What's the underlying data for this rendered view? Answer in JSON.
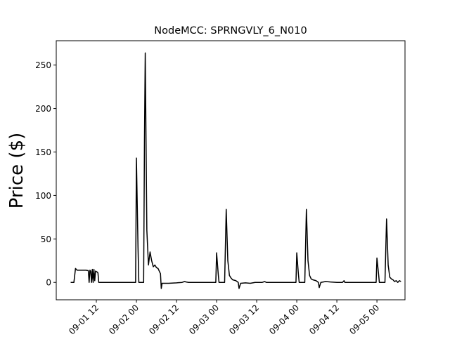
{
  "chart_data": {
    "type": "line",
    "title": "NodeMCC: SPRNGVLY_6_N010",
    "xlabel": "",
    "ylabel": "Price ($)",
    "ylim": [
      -20,
      278
    ],
    "xlim": [
      0.0,
      4.35
    ],
    "x_unit": "days since 2020-09-01 00:00",
    "y_ticks": [
      0,
      50,
      100,
      150,
      200,
      250
    ],
    "y_tick_labels": [
      "0",
      "50",
      "100",
      "150",
      "200",
      "250"
    ],
    "x_ticks": [
      0.5,
      1.0,
      1.5,
      2.0,
      2.5,
      3.0,
      3.5,
      4.0
    ],
    "x_tick_labels": [
      "09-01 12",
      "09-02 00",
      "09-02 12",
      "09-03 00",
      "09-03 12",
      "09-04 00",
      "09-04 12",
      "09-05 00"
    ],
    "grid": false,
    "line_color": "#000000",
    "series": [
      {
        "name": "",
        "points": [
          [
            0.18,
            0
          ],
          [
            0.22,
            0
          ],
          [
            0.24,
            16
          ],
          [
            0.26,
            14
          ],
          [
            0.3,
            14
          ],
          [
            0.34,
            14
          ],
          [
            0.37,
            14
          ],
          [
            0.4,
            13.5
          ],
          [
            0.41,
            0
          ],
          [
            0.42,
            14
          ],
          [
            0.43,
            13
          ],
          [
            0.44,
            0
          ],
          [
            0.45,
            15
          ],
          [
            0.46,
            0
          ],
          [
            0.47,
            15
          ],
          [
            0.48,
            2
          ],
          [
            0.49,
            13
          ],
          [
            0.51,
            12
          ],
          [
            0.52,
            11
          ],
          [
            0.53,
            0
          ],
          [
            0.6,
            0
          ],
          [
            0.8,
            0
          ],
          [
            0.99,
            0
          ],
          [
            1.0,
            143
          ],
          [
            1.02,
            40
          ],
          [
            1.03,
            0
          ],
          [
            1.09,
            0
          ],
          [
            1.1,
            160
          ],
          [
            1.11,
            264
          ],
          [
            1.13,
            60
          ],
          [
            1.15,
            20
          ],
          [
            1.17,
            35
          ],
          [
            1.19,
            25
          ],
          [
            1.21,
            18
          ],
          [
            1.23,
            20
          ],
          [
            1.25,
            17
          ],
          [
            1.27,
            16
          ],
          [
            1.29,
            12
          ],
          [
            1.3,
            10
          ],
          [
            1.31,
            -7
          ],
          [
            1.32,
            -1
          ],
          [
            1.4,
            -1
          ],
          [
            1.5,
            -0.5
          ],
          [
            1.57,
            0
          ],
          [
            1.6,
            1
          ],
          [
            1.62,
            0.5
          ],
          [
            1.65,
            0
          ],
          [
            1.8,
            0
          ],
          [
            1.99,
            0
          ],
          [
            2.0,
            34
          ],
          [
            2.02,
            10
          ],
          [
            2.03,
            0
          ],
          [
            2.1,
            0
          ],
          [
            2.12,
            84
          ],
          [
            2.14,
            25
          ],
          [
            2.16,
            8
          ],
          [
            2.18,
            5
          ],
          [
            2.2,
            3
          ],
          [
            2.24,
            2
          ],
          [
            2.27,
            0
          ],
          [
            2.28,
            -7
          ],
          [
            2.3,
            -1
          ],
          [
            2.36,
            -0.5
          ],
          [
            2.42,
            -1
          ],
          [
            2.48,
            0
          ],
          [
            2.57,
            0
          ],
          [
            2.6,
            1
          ],
          [
            2.62,
            0
          ],
          [
            2.8,
            0
          ],
          [
            2.99,
            0
          ],
          [
            3.0,
            34
          ],
          [
            3.02,
            10
          ],
          [
            3.03,
            0
          ],
          [
            3.1,
            0
          ],
          [
            3.12,
            84
          ],
          [
            3.14,
            25
          ],
          [
            3.16,
            8
          ],
          [
            3.18,
            4
          ],
          [
            3.2,
            3
          ],
          [
            3.24,
            2
          ],
          [
            3.27,
            0
          ],
          [
            3.28,
            -6
          ],
          [
            3.3,
            0
          ],
          [
            3.36,
            1
          ],
          [
            3.42,
            0.5
          ],
          [
            3.5,
            0
          ],
          [
            3.57,
            0
          ],
          [
            3.59,
            2
          ],
          [
            3.6,
            0
          ],
          [
            3.8,
            0
          ],
          [
            3.99,
            0
          ],
          [
            4.0,
            28
          ],
          [
            4.02,
            10
          ],
          [
            4.03,
            0
          ],
          [
            4.1,
            0
          ],
          [
            4.12,
            73
          ],
          [
            4.14,
            20
          ],
          [
            4.16,
            6
          ],
          [
            4.18,
            4
          ],
          [
            4.2,
            3
          ],
          [
            4.22,
            1
          ],
          [
            4.24,
            2
          ],
          [
            4.26,
            0
          ],
          [
            4.28,
            2
          ],
          [
            4.3,
            1
          ]
        ]
      }
    ]
  }
}
